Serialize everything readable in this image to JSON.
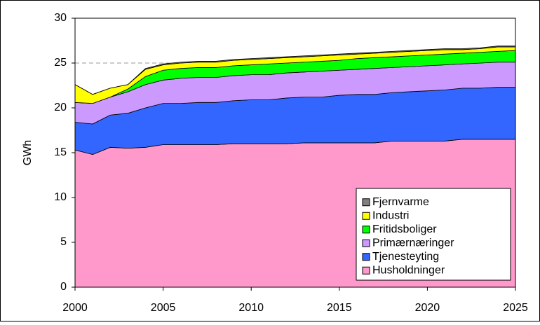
{
  "chart_data": {
    "type": "stacked_area",
    "y_label": "GWh",
    "x": [
      2000,
      2001,
      2002,
      2003,
      2004,
      2005,
      2006,
      2007,
      2008,
      2009,
      2010,
      2011,
      2012,
      2013,
      2014,
      2015,
      2016,
      2017,
      2018,
      2019,
      2020,
      2021,
      2022,
      2023,
      2024,
      2025
    ],
    "xlim": [
      2000,
      2025
    ],
    "xticks": [
      2000,
      2005,
      2010,
      2015,
      2020,
      2025
    ],
    "ylim": [
      0,
      30
    ],
    "yticks": [
      0,
      5,
      10,
      15,
      20,
      25,
      30
    ],
    "grid": true,
    "legend": "lower right",
    "series": [
      {
        "name": "Husholdninger",
        "color": "#ff99cc",
        "values": [
          15.3,
          14.8,
          15.6,
          15.5,
          15.6,
          15.9,
          15.9,
          15.9,
          15.9,
          16.0,
          16.0,
          16.0,
          16.0,
          16.1,
          16.1,
          16.1,
          16.1,
          16.1,
          16.3,
          16.3,
          16.3,
          16.3,
          16.5,
          16.5,
          16.5,
          16.5
        ]
      },
      {
        "name": "Tjenesteyting",
        "color": "#3366ff",
        "values": [
          3.1,
          3.4,
          3.6,
          3.9,
          4.4,
          4.6,
          4.6,
          4.7,
          4.7,
          4.8,
          4.9,
          4.9,
          5.1,
          5.1,
          5.1,
          5.3,
          5.4,
          5.4,
          5.4,
          5.5,
          5.6,
          5.7,
          5.7,
          5.7,
          5.8,
          5.8
        ]
      },
      {
        "name": "Primærnæringer",
        "color": "#cc99ff",
        "values": [
          2.2,
          2.3,
          2.0,
          2.4,
          2.6,
          2.6,
          2.8,
          2.8,
          2.8,
          2.8,
          2.8,
          2.8,
          2.8,
          2.8,
          2.9,
          2.8,
          2.8,
          2.9,
          2.8,
          2.8,
          2.8,
          2.8,
          2.7,
          2.8,
          2.8,
          2.8
        ]
      },
      {
        "name": "Fritidsboliger",
        "color": "#00ff00",
        "values": [
          0,
          0,
          0,
          0.3,
          0.9,
          1.1,
          1.1,
          1.1,
          1.1,
          1.1,
          1.1,
          1.2,
          1.1,
          1.1,
          1.1,
          1.1,
          1.2,
          1.2,
          1.2,
          1.2,
          1.2,
          1.2,
          1.2,
          1.2,
          1.2,
          1.3
        ]
      },
      {
        "name": "Industri",
        "color": "#ffff00",
        "values": [
          2.0,
          1.0,
          1.0,
          0.5,
          0.8,
          0.6,
          0.6,
          0.6,
          0.6,
          0.6,
          0.6,
          0.6,
          0.6,
          0.6,
          0.6,
          0.6,
          0.5,
          0.5,
          0.5,
          0.5,
          0.5,
          0.5,
          0.4,
          0.4,
          0.5,
          0.4
        ]
      },
      {
        "name": "Fjernvarme",
        "color": "#808080",
        "values": [
          0,
          0,
          0,
          0,
          0.1,
          0.1,
          0.1,
          0.1,
          0.1,
          0.1,
          0.1,
          0.1,
          0.1,
          0.1,
          0.1,
          0.1,
          0.1,
          0.1,
          0.1,
          0.1,
          0.1,
          0.1,
          0.1,
          0.1,
          0.1,
          0.1
        ]
      }
    ]
  }
}
